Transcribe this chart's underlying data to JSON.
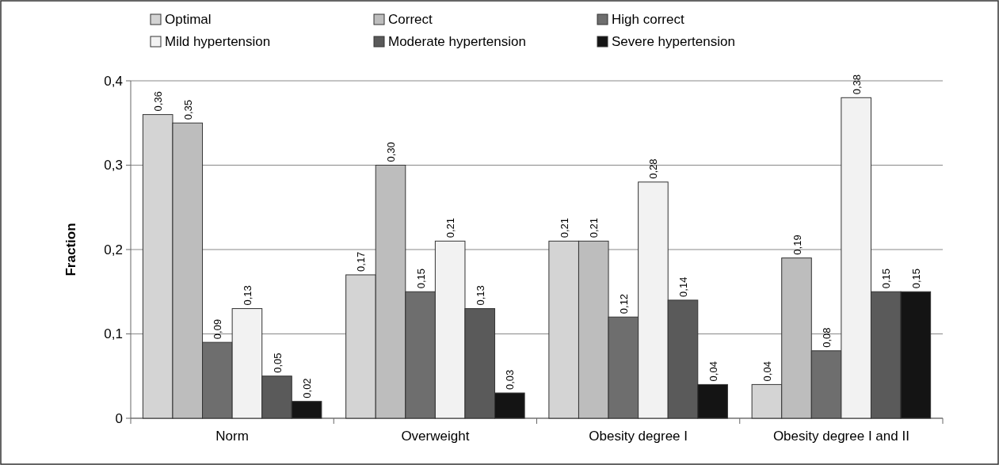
{
  "chart_data": {
    "type": "bar",
    "ylabel": "Fraction",
    "categories": [
      "Norm",
      "Overweight",
      "Obesity degree I",
      "Obesity degree I and II"
    ],
    "series": [
      {
        "name": "Optimal",
        "color": "#d4d4d4",
        "values": [
          0.36,
          0.17,
          0.21,
          0.04
        ],
        "value_labels": [
          "0,36",
          "0,17",
          "0,21",
          "0,04"
        ]
      },
      {
        "name": "Correct",
        "color": "#bdbdbd",
        "values": [
          0.35,
          0.3,
          0.21,
          0.19
        ],
        "value_labels": [
          "0,35",
          "0,30",
          "0,21",
          "0,19"
        ]
      },
      {
        "name": "High correct",
        "color": "#6e6e6e",
        "values": [
          0.09,
          0.15,
          0.12,
          0.08
        ],
        "value_labels": [
          "0,09",
          "0,15",
          "0,12",
          "0,08"
        ]
      },
      {
        "name": "Mild hypertension",
        "color": "#f2f2f2",
        "values": [
          0.13,
          0.21,
          0.28,
          0.38
        ],
        "value_labels": [
          "0,13",
          "0,21",
          "0,28",
          "0,38"
        ]
      },
      {
        "name": "Moderate hypertension",
        "color": "#5a5a5a",
        "values": [
          0.05,
          0.13,
          0.14,
          0.15
        ],
        "value_labels": [
          "0,05",
          "0,13",
          "0,14",
          "0,15"
        ]
      },
      {
        "name": "Severe hypertension",
        "color": "#141414",
        "values": [
          0.02,
          0.03,
          0.04,
          0.15
        ],
        "value_labels": [
          "0,02",
          "0,03",
          "0,04",
          "0,15"
        ]
      }
    ],
    "ylim": [
      0,
      0.4
    ],
    "yticks": [
      0,
      {
        "value": 0.1,
        "label": "0,1"
      },
      {
        "value": 0.2,
        "label": "0,2"
      },
      {
        "value": 0.3,
        "label": "0,3"
      },
      {
        "value": 0.4,
        "label": "0,4"
      }
    ],
    "grid": "y",
    "legend": "top left"
  }
}
